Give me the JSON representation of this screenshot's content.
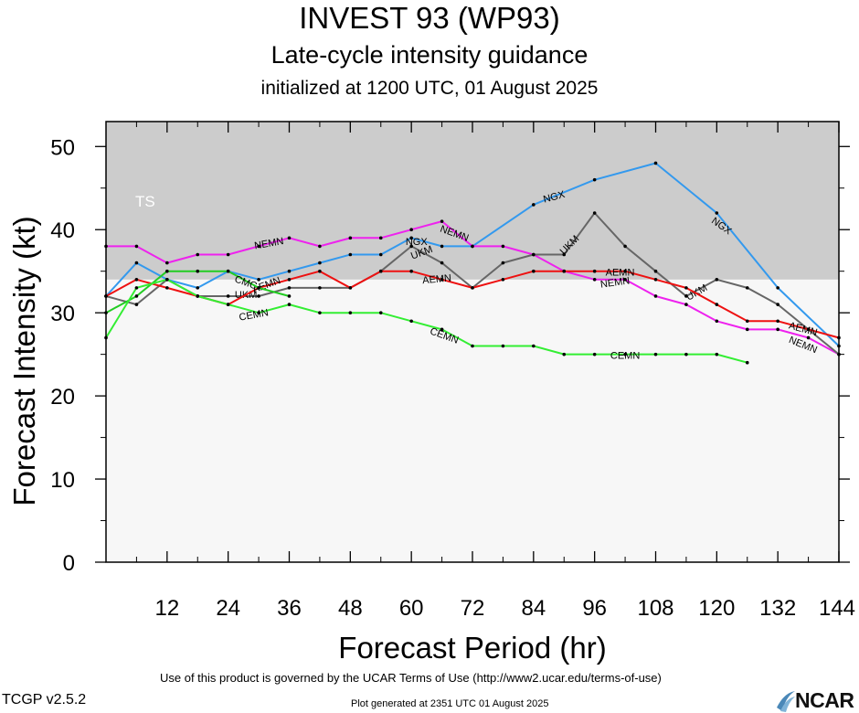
{
  "header": {
    "title": "INVEST 93 (WP93)",
    "subtitle": "Late-cycle intensity guidance",
    "init": "initialized at 1200 UTC, 01 August 2025"
  },
  "footer": {
    "terms": "Use of this product is governed by the UCAR Terms of Use (http://www2.ucar.edu/terms-of-use)",
    "version": "TCGP v2.5.2",
    "generated": "Plot generated at 2351 UTC   01 August 2025",
    "logo_text": "NCAR"
  },
  "chart_data": {
    "type": "line",
    "xlabel": "Forecast Period (hr)",
    "ylabel": "Forecast Intensity (kt)",
    "xlim": [
      0,
      144
    ],
    "ylim": [
      0,
      53
    ],
    "xticks": [
      12,
      24,
      36,
      48,
      60,
      72,
      84,
      96,
      108,
      120,
      132,
      144
    ],
    "yticks": [
      0,
      10,
      20,
      30,
      40,
      50
    ],
    "grid": false,
    "bands": [
      {
        "label": "TS",
        "from": 34,
        "to": 53,
        "color": "#cccccc"
      }
    ],
    "background_color": "#f7f7f7",
    "series": [
      {
        "name": "NGX",
        "color": "#3399ee",
        "x": [
          0,
          6,
          12,
          18,
          24,
          30,
          36,
          42,
          48,
          54,
          60,
          66,
          72,
          84,
          96,
          108,
          120,
          132,
          144
        ],
        "y": [
          32,
          36,
          34,
          33,
          35,
          34,
          35,
          36,
          37,
          37,
          39,
          38,
          38,
          43,
          46,
          48,
          42,
          33,
          26
        ],
        "labels": [
          {
            "x": 61,
            "y": 38.6,
            "angle": 0
          },
          {
            "x": 88,
            "y": 44,
            "angle": -15
          },
          {
            "x": 121,
            "y": 40.5,
            "angle": 35
          }
        ]
      },
      {
        "name": "NEMN",
        "color": "#ee22ee",
        "x": [
          0,
          6,
          12,
          18,
          24,
          30,
          36,
          42,
          48,
          54,
          60,
          66,
          72,
          78,
          84,
          90,
          96,
          102,
          108,
          114,
          120,
          126,
          132,
          138,
          144
        ],
        "y": [
          38,
          38,
          36,
          37,
          37,
          38,
          39,
          38,
          39,
          39,
          40,
          41,
          38,
          38,
          37,
          35,
          34,
          34,
          32,
          31,
          29,
          28,
          28,
          27,
          25
        ],
        "labels": [
          {
            "x": 32,
            "y": 38.4,
            "angle": -10
          },
          {
            "x": 68.5,
            "y": 39.6,
            "angle": 20
          },
          {
            "x": 100,
            "y": 33.7,
            "angle": -8
          },
          {
            "x": 137,
            "y": 26.2,
            "angle": 22
          }
        ]
      },
      {
        "name": "UKM",
        "color": "#666666",
        "x": [
          0,
          6,
          12,
          18,
          24,
          30,
          36,
          42,
          48,
          54,
          60,
          66,
          72,
          78,
          84,
          90,
          96,
          102,
          108,
          114,
          120,
          126,
          132,
          138,
          144
        ],
        "y": [
          32,
          31,
          34,
          32,
          32,
          32,
          33,
          33,
          33,
          35,
          38,
          36,
          33,
          36,
          37,
          37,
          42,
          38,
          35,
          32,
          34,
          33,
          31,
          28,
          25
        ],
        "labels": [
          {
            "x": 27.5,
            "y": 32.2,
            "angle": 0
          },
          {
            "x": 62,
            "y": 37.3,
            "angle": -20
          },
          {
            "x": 91,
            "y": 38.2,
            "angle": -45
          },
          {
            "x": 116,
            "y": 32.5,
            "angle": -30
          }
        ]
      },
      {
        "name": "AEMN",
        "color": "#ee1111",
        "x": [
          0,
          6,
          12,
          18,
          24,
          30,
          36,
          42,
          48,
          54,
          60,
          66,
          72,
          78,
          84,
          90,
          96,
          102,
          108,
          114,
          120,
          126,
          132,
          138,
          144
        ],
        "y": [
          32,
          34,
          33,
          32,
          31,
          33,
          34,
          35,
          33,
          35,
          35,
          34,
          33,
          34,
          35,
          35,
          35,
          35,
          34,
          33,
          31,
          29,
          29,
          28,
          27
        ],
        "labels": [
          {
            "x": 31.5,
            "y": 33.4,
            "angle": -20
          },
          {
            "x": 65,
            "y": 34.1,
            "angle": -5
          },
          {
            "x": 101,
            "y": 34.9,
            "angle": 0
          },
          {
            "x": 137,
            "y": 28.1,
            "angle": 15
          }
        ]
      },
      {
        "name": "CMC",
        "color": "#22cc22",
        "x": [
          0,
          6,
          12,
          18,
          24,
          30,
          36
        ],
        "y": [
          30,
          32,
          35,
          35,
          35,
          33,
          32
        ],
        "labels": [
          {
            "x": 27.5,
            "y": 33.7,
            "angle": 20
          }
        ]
      },
      {
        "name": "CEMN",
        "color": "#33ee33",
        "x": [
          0,
          6,
          12,
          18,
          24,
          30,
          36,
          42,
          48,
          54,
          60,
          66,
          72,
          78,
          84,
          90,
          96,
          102,
          108,
          114,
          120,
          126
        ],
        "y": [
          27,
          33,
          34,
          32,
          31,
          30,
          31,
          30,
          30,
          30,
          29,
          28,
          26,
          26,
          26,
          25,
          25,
          25,
          25,
          25,
          25,
          24
        ],
        "labels": [
          {
            "x": 29,
            "y": 29.8,
            "angle": -10
          },
          {
            "x": 66.5,
            "y": 27.3,
            "angle": 20
          },
          {
            "x": 102,
            "y": 24.9,
            "angle": 0
          }
        ]
      }
    ]
  }
}
